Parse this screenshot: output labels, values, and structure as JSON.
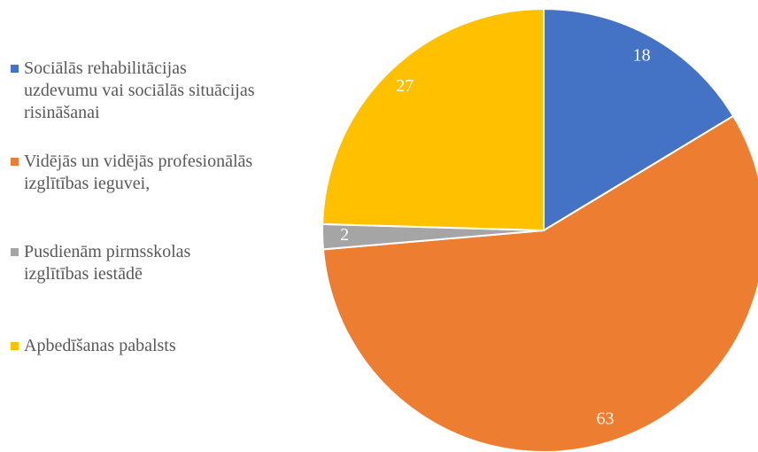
{
  "chart_data": {
    "type": "pie",
    "categories": [
      "Sociālās rehabilitācijas uzdevumu vai sociālās situācijas risināšanai",
      "Vidējās un vidējās profesionālās izglītības ieguvei,",
      "Pusdienām pirmsskolas izglītības iestādē",
      "Apbedīšanas pabalsts"
    ],
    "values": [
      18,
      63,
      2,
      27
    ],
    "colors": [
      "#4472c4",
      "#ed7d31",
      "#a5a5a5",
      "#ffc000"
    ],
    "legend": "left"
  }
}
